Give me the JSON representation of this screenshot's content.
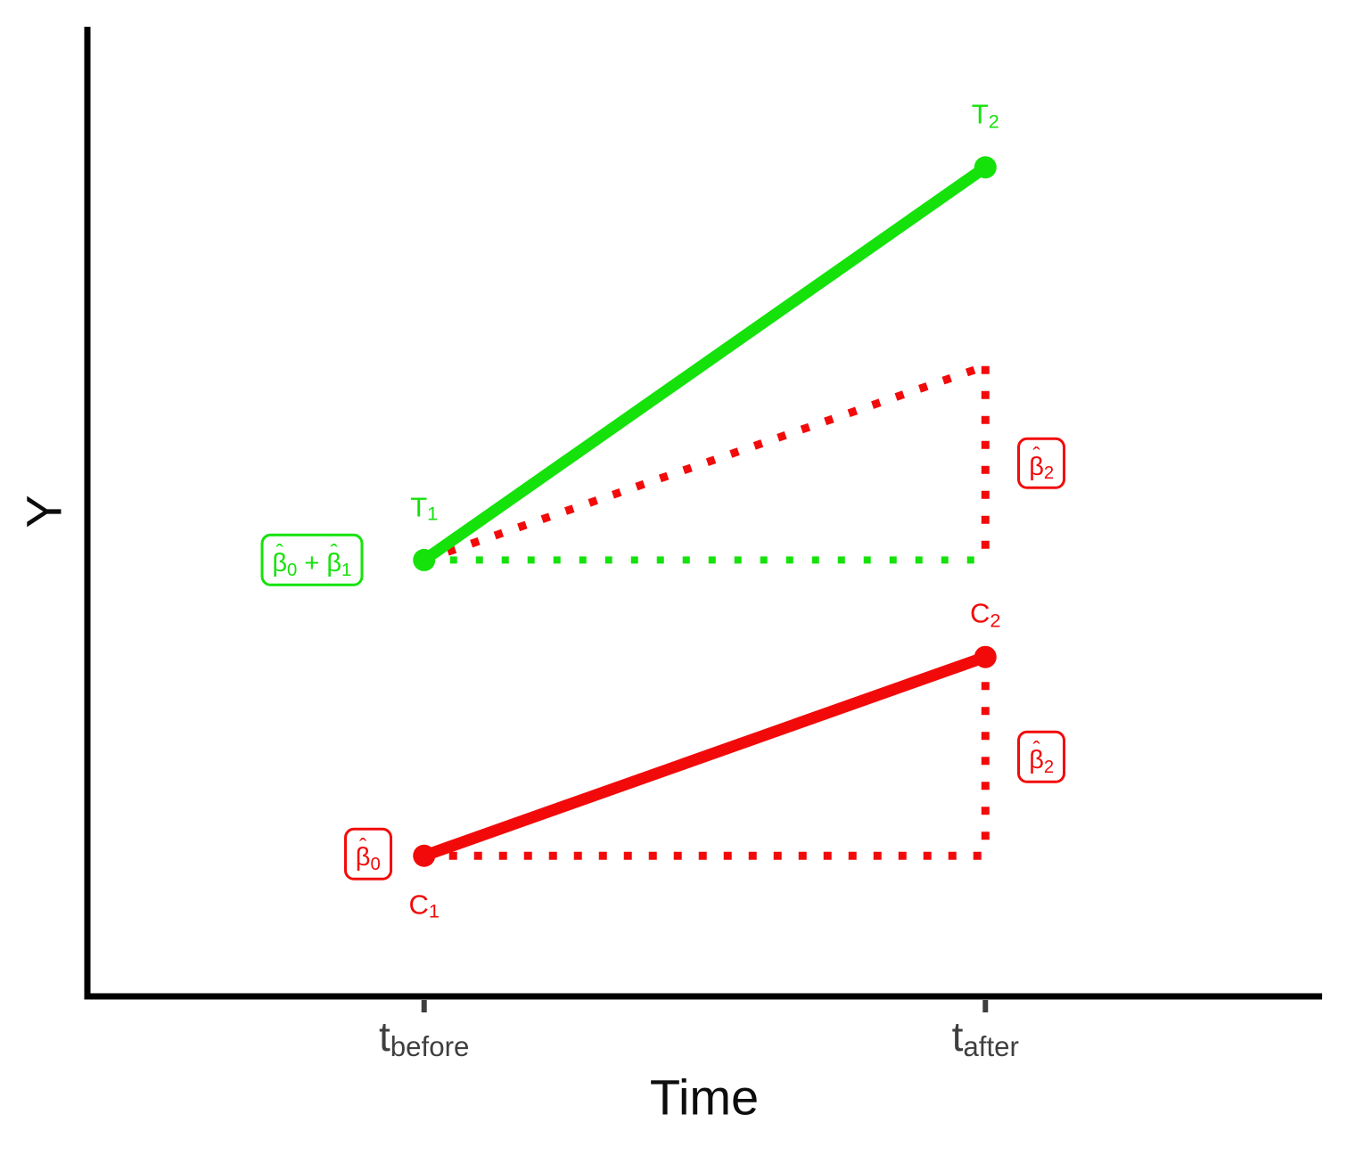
{
  "figure": {
    "background": "#ffffff"
  },
  "chart_data": {
    "type": "line",
    "title": "",
    "xlabel": "Time",
    "ylabel": "Y",
    "grid": false,
    "legend": "none",
    "axis_color": "#000000",
    "tick_color": "#3f3f3f",
    "xlim": [
      -0.6,
      1.6
    ],
    "ylim": [
      0,
      10
    ],
    "x_ticks": [
      {
        "x": 0,
        "base": "t",
        "sub": "before"
      },
      {
        "x": 1,
        "base": "t",
        "sub": "after"
      }
    ],
    "colors": {
      "treatment": "#15e20b",
      "control": "#f20a0a"
    },
    "series": [
      {
        "name": "treatment-line",
        "group": "Treatment",
        "color_key": "treatment",
        "line": "solid",
        "points": [
          {
            "x": 0,
            "y": 4.5
          },
          {
            "x": 1,
            "y": 8.55
          }
        ]
      },
      {
        "name": "control-line",
        "group": "Control",
        "color_key": "control",
        "line": "solid",
        "points": [
          {
            "x": 0,
            "y": 1.45
          },
          {
            "x": 1,
            "y": 3.5
          }
        ]
      }
    ],
    "guides": [
      {
        "name": "treatment-flat-baseline-dotted",
        "color_key": "treatment",
        "from": {
          "x": 0,
          "y": 4.5
        },
        "to": {
          "x": 1,
          "y": 4.5
        }
      },
      {
        "name": "treatment-parallel-trend-dotted",
        "color_key": "control",
        "from": {
          "x": 0,
          "y": 4.5
        },
        "to": {
          "x": 1,
          "y": 6.5
        }
      },
      {
        "name": "control-flat-baseline-dotted",
        "color_key": "control",
        "from": {
          "x": 0,
          "y": 1.45
        },
        "to": {
          "x": 1,
          "y": 1.45
        }
      },
      {
        "name": "time-effect-gap-treatment-dotted",
        "color_key": "control",
        "from": {
          "x": 1,
          "y": 6.5
        },
        "to": {
          "x": 1,
          "y": 4.5
        }
      },
      {
        "name": "time-effect-gap-control-dotted",
        "color_key": "control",
        "from": {
          "x": 1,
          "y": 3.5
        },
        "to": {
          "x": 1,
          "y": 1.45
        }
      }
    ],
    "point_labels": [
      {
        "name": "point-label-T1",
        "text": "T₁",
        "color_key": "treatment",
        "x": 0,
        "y": 5.05
      },
      {
        "name": "point-label-T2",
        "text": "T₂",
        "color_key": "treatment",
        "x": 1,
        "y": 9.1
      },
      {
        "name": "point-label-C1",
        "text": "C₁",
        "color_key": "control",
        "x": 0,
        "y": 0.95
      },
      {
        "name": "point-label-C2",
        "text": "C₂",
        "color_key": "control",
        "x": 1,
        "y": 3.95
      }
    ],
    "annotations": [
      {
        "name": "beta0-plus-beta1-box",
        "text": "β̂₀ + β̂₁",
        "color_key": "treatment",
        "x": -0.2,
        "y": 4.5
      },
      {
        "name": "beta0-box",
        "text": "β̂₀",
        "color_key": "control",
        "x": -0.1,
        "y": 1.47
      },
      {
        "name": "beta2-top-box",
        "text": "β̂₂",
        "color_key": "control",
        "x": 1.1,
        "y": 5.5
      },
      {
        "name": "beta2-bottom-box",
        "text": "β̂₂",
        "color_key": "control",
        "x": 1.1,
        "y": 2.47
      }
    ]
  }
}
